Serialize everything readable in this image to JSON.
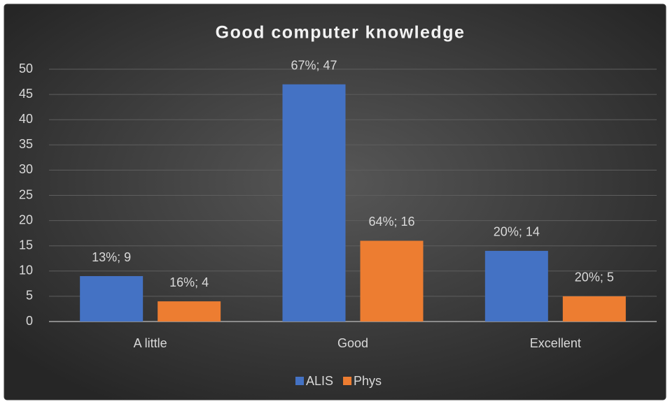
{
  "chart_data": {
    "type": "bar",
    "title": "Good computer knowledge",
    "categories": [
      "A little",
      "Good",
      "Excellent"
    ],
    "series": [
      {
        "name": "ALIS",
        "color": "#4472c4",
        "values": [
          9,
          47,
          14
        ],
        "value_labels": [
          "13%; 9",
          "67%; 47",
          "20%; 14"
        ]
      },
      {
        "name": "Phys",
        "color": "#ed7d31",
        "values": [
          4,
          16,
          5
        ],
        "value_labels": [
          "16%; 4",
          "64%; 16",
          "20%; 5"
        ]
      }
    ],
    "ylim": [
      0,
      50
    ],
    "yticks": [
      0,
      5,
      10,
      15,
      20,
      25,
      30,
      35,
      40,
      45,
      50
    ],
    "grid": true,
    "legend": "bottom"
  }
}
